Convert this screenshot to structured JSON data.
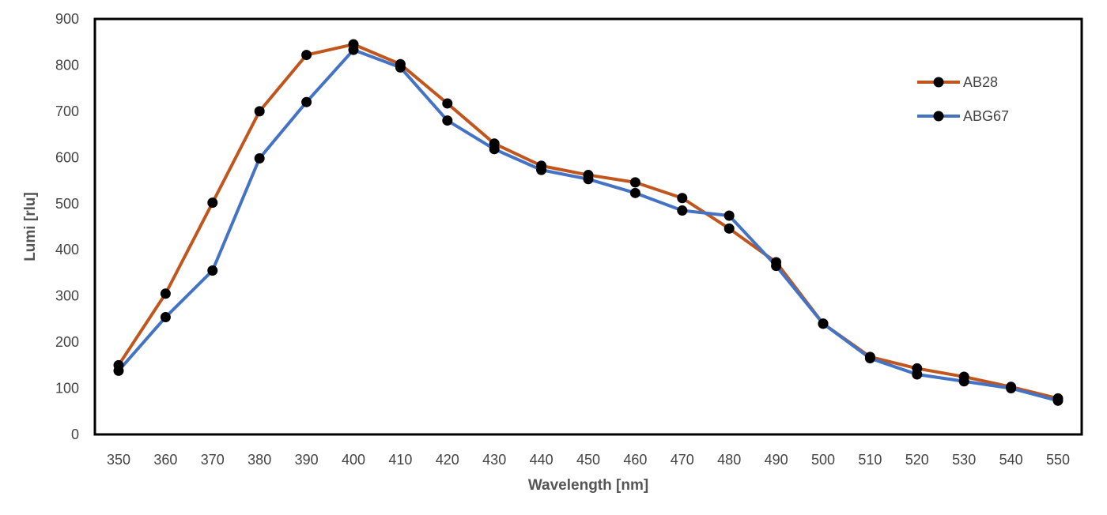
{
  "chart_data": {
    "type": "line",
    "title": "",
    "xlabel": "Wavelength [nm]",
    "ylabel": "Lumi [rlu]",
    "x": [
      350,
      360,
      370,
      380,
      390,
      400,
      410,
      420,
      430,
      440,
      450,
      460,
      470,
      480,
      490,
      500,
      510,
      520,
      530,
      540,
      550
    ],
    "x_tick_labels": [
      "350",
      "360",
      "370",
      "380",
      "390",
      "400",
      "410",
      "420",
      "430",
      "440",
      "450",
      "460",
      "470",
      "480",
      "490",
      "500",
      "510",
      "520",
      "530",
      "540",
      "550"
    ],
    "ylim": [
      0,
      900
    ],
    "y_tick_labels": [
      "0",
      "100",
      "200",
      "300",
      "400",
      "500",
      "600",
      "700",
      "800",
      "900"
    ],
    "grid": false,
    "legend_position": "top-right",
    "series": [
      {
        "name": "AB28",
        "color": "#C0561E",
        "values": [
          150,
          305,
          502,
          700,
          822,
          845,
          802,
          717,
          630,
          582,
          562,
          546,
          512,
          446,
          373,
          240,
          168,
          143,
          125,
          103,
          78
        ]
      },
      {
        "name": "ABG67",
        "color": "#4472C4",
        "values": [
          138,
          254,
          355,
          598,
          720,
          833,
          795,
          680,
          618,
          573,
          553,
          523,
          485,
          474,
          365,
          240,
          165,
          130,
          115,
          100,
          73
        ]
      }
    ],
    "marker_color": "#000000"
  }
}
